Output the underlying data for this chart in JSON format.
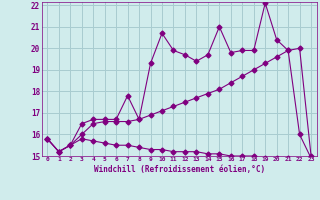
{
  "xlabel": "Windchill (Refroidissement éolien,°C)",
  "x": [
    0,
    1,
    2,
    3,
    4,
    5,
    6,
    7,
    8,
    9,
    10,
    11,
    12,
    13,
    14,
    15,
    16,
    17,
    18,
    19,
    20,
    21,
    22,
    23
  ],
  "line1": [
    15.8,
    15.2,
    15.5,
    16.5,
    16.7,
    16.7,
    16.7,
    17.8,
    16.7,
    19.3,
    20.7,
    19.9,
    19.7,
    19.4,
    19.7,
    21.0,
    19.8,
    19.9,
    19.9,
    22.1,
    20.4,
    19.9,
    16.0,
    14.9
  ],
  "line2": [
    15.8,
    15.2,
    15.5,
    16.0,
    16.5,
    16.6,
    16.6,
    16.6,
    16.7,
    16.9,
    17.1,
    17.3,
    17.5,
    17.7,
    17.9,
    18.1,
    18.4,
    18.7,
    19.0,
    19.3,
    19.6,
    19.9,
    20.0,
    15.0
  ],
  "line3": [
    15.8,
    15.2,
    15.5,
    15.8,
    15.7,
    15.6,
    15.5,
    15.5,
    15.4,
    15.3,
    15.3,
    15.2,
    15.2,
    15.2,
    15.1,
    15.1,
    15.0,
    15.0,
    15.0,
    14.9,
    14.9,
    14.9,
    14.8,
    14.9
  ],
  "line_color": "#800080",
  "bg_color": "#d0ecec",
  "grid_color": "#a8ccd0",
  "ylim": [
    15,
    22
  ],
  "xlim": [
    -0.5,
    23.5
  ],
  "yticks": [
    15,
    16,
    17,
    18,
    19,
    20,
    21,
    22
  ],
  "xticks": [
    0,
    1,
    2,
    3,
    4,
    5,
    6,
    7,
    8,
    9,
    10,
    11,
    12,
    13,
    14,
    15,
    16,
    17,
    18,
    19,
    20,
    21,
    22,
    23
  ]
}
